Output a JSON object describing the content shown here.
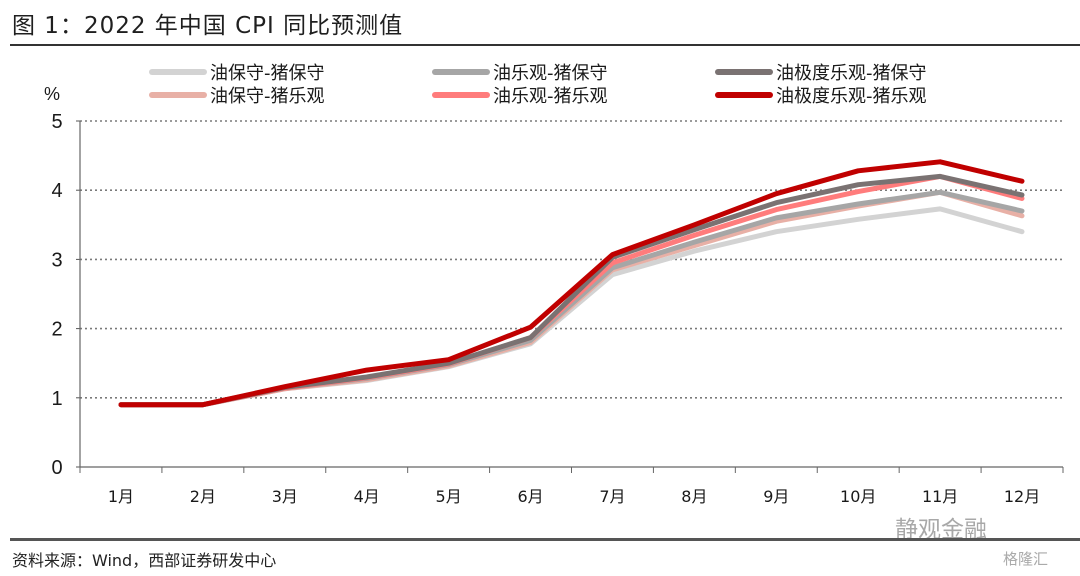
{
  "title": "图 1：2022 年中国 CPI 同比预测值",
  "source": "资料来源：Wind，西部证券研发中心",
  "watermark": "静观金融",
  "watermark2": "格隆汇",
  "chart_data": {
    "type": "line",
    "title": "2022 年中国 CPI 同比预测值",
    "ylabel": "%",
    "xlabel": "",
    "ylim": [
      0,
      5
    ],
    "yticks": [
      "0",
      "1",
      "2",
      "3",
      "4",
      "5"
    ],
    "grid": true,
    "legend_position": "top",
    "categories": [
      "1月",
      "2月",
      "3月",
      "4月",
      "5月",
      "6月",
      "7月",
      "8月",
      "9月",
      "10月",
      "11月",
      "12月"
    ],
    "series": [
      {
        "name": "油保守-猪保守",
        "color": "#d3d3d3",
        "values": [
          0.9,
          0.9,
          1.13,
          1.25,
          1.45,
          1.78,
          2.78,
          3.12,
          3.4,
          3.58,
          3.73,
          3.4
        ]
      },
      {
        "name": "油乐观-猪保守",
        "color": "#a6a6a6",
        "values": [
          0.9,
          0.9,
          1.14,
          1.28,
          1.48,
          1.83,
          2.88,
          3.25,
          3.6,
          3.8,
          3.97,
          3.7
        ]
      },
      {
        "name": "油极度乐观-猪保守",
        "color": "#7a7272",
        "values": [
          0.9,
          0.9,
          1.15,
          1.3,
          1.5,
          1.87,
          3.03,
          3.43,
          3.82,
          4.08,
          4.2,
          3.93
        ]
      },
      {
        "name": "油保守-猪乐观",
        "color": "#e8b0a6",
        "values": [
          0.9,
          0.9,
          1.13,
          1.26,
          1.46,
          1.8,
          2.85,
          3.2,
          3.55,
          3.77,
          3.97,
          3.63
        ]
      },
      {
        "name": "油乐观-猪乐观",
        "color": "#ff7c7c",
        "values": [
          0.9,
          0.9,
          1.14,
          1.29,
          1.49,
          1.87,
          2.95,
          3.35,
          3.72,
          3.98,
          4.2,
          3.88
        ]
      },
      {
        "name": "油极度乐观-猪乐观",
        "color": "#c00000",
        "values": [
          0.9,
          0.9,
          1.16,
          1.4,
          1.55,
          2.02,
          3.07,
          3.5,
          3.95,
          4.28,
          4.41,
          4.13
        ]
      }
    ]
  }
}
